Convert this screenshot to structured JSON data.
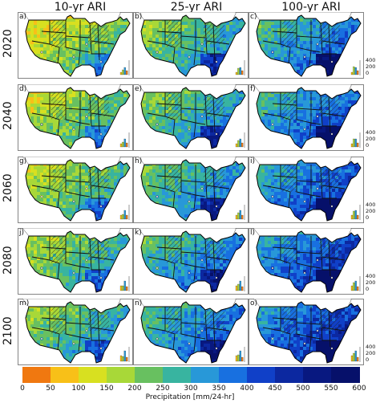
{
  "columns": [
    {
      "label": "10-yr ARI"
    },
    {
      "label": "25-yr ARI"
    },
    {
      "label": "100-yr ARI"
    }
  ],
  "rows": [
    {
      "label": "2020"
    },
    {
      "label": "2040"
    },
    {
      "label": "2060"
    },
    {
      "label": "2080"
    },
    {
      "label": "2100"
    }
  ],
  "panel_labels": [
    "a)",
    "b)",
    "c)",
    "d)",
    "e)",
    "f)",
    "g)",
    "h)",
    "i)",
    "j)",
    "k)",
    "l)",
    "m)",
    "n)",
    "o)"
  ],
  "histogram_ticks": [
    "400",
    "200",
    "0"
  ],
  "colorbar": {
    "label": "Precipitation [mm/24-hr]",
    "ticks": [
      "0",
      "50",
      "100",
      "150",
      "200",
      "250",
      "300",
      "350",
      "400",
      "450",
      "500",
      "550",
      "600"
    ],
    "colors": [
      "#f07810",
      "#f8c018",
      "#d8e020",
      "#a8d838",
      "#68c060",
      "#38b4a0",
      "#2898d8",
      "#1870e0",
      "#1040c8",
      "#0c28a0",
      "#081880",
      "#06106a"
    ]
  }
}
